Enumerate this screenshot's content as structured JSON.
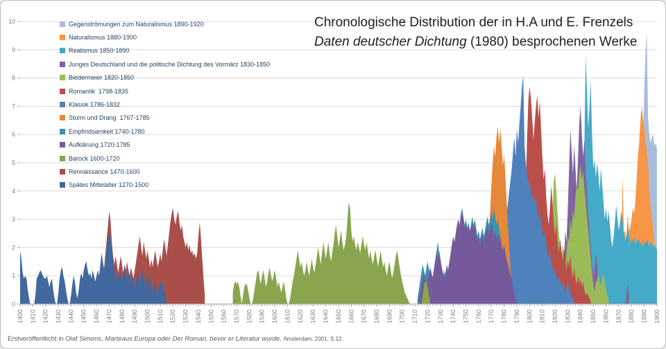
{
  "title": {
    "prefix": "Chronologische Distribution der in H.A und E. Frenzels ",
    "italic": "Daten deutscher Dichtung",
    "suffix": " (1980) besprochenen Werke"
  },
  "footer": {
    "prefix": "Erstveröffentlicht in Olaf Simons, ",
    "italic": "Marteaus Europa oder Der Roman, bevor er Literatur wurde",
    "suffix": ". ",
    "small": "Amsterdam, 2001, S.12."
  },
  "palette": {
    "grid": "#D9D9D9",
    "axis": "#A6A6A6",
    "tick": "#BFBFBF",
    "tick_label": "#808080",
    "legend_text": "#1F3D5C",
    "background": "#FFFFFF",
    "border": "#BDBDBD"
  },
  "chart_data": {
    "type": "area",
    "title": "Chronologische Distribution der in H.A und E. Frenzels Daten deutscher Dichtung (1980) besprochenen Werke",
    "xlabel": "",
    "ylabel": "",
    "x_axis": {
      "start": 1400,
      "end": 1900,
      "tick_interval": 10,
      "minor_tick_interval": 2,
      "tick_labels": [
        "1400",
        "1410",
        "1420",
        "1430",
        "1440",
        "1450",
        "1460",
        "1470",
        "1480",
        "1490",
        "1500",
        "1510",
        "1520",
        "1530",
        "1540",
        "1550",
        "1560",
        "1570",
        "1580",
        "1590",
        "1600",
        "1610",
        "1620",
        "1630",
        "1640",
        "1650",
        "1660",
        "1670",
        "1680",
        "1690",
        "1700",
        "1710",
        "1720",
        "1730",
        "1740",
        "1750",
        "1760",
        "1770",
        "1780",
        "1790",
        "1800",
        "1810",
        "1820",
        "1830",
        "1840",
        "1850",
        "1860",
        "1870",
        "1880",
        "1890",
        "1900"
      ]
    },
    "y_axis": {
      "min": 0,
      "max": 10,
      "tick_interval": 1,
      "tick_labels": [
        "0",
        "1",
        "2",
        "3",
        "4",
        "5",
        "6",
        "7",
        "8",
        "9",
        "10"
      ]
    },
    "grid": true,
    "legend_position": "top-left",
    "series_note": "array order = painter order, first = back-most; legend shown in same order top to bottom; x resolution = 1 year",
    "series": [
      {
        "name": "Gegenströmungen zum Naturalismus",
        "period": "1890-1920",
        "label": "Gegenströmungen zum Naturalismus 1890-1920",
        "color": "#A9BDDB",
        "start": 1886,
        "values": [
          0.5,
          1.5,
          3.0,
          5.5,
          7.5,
          9.0,
          9.6,
          6.6,
          6.0,
          5.7,
          5.9,
          6.0,
          5.6,
          5.7,
          5.5
        ]
      },
      {
        "name": "Naturalismus",
        "period": "1880-1900",
        "label": "Naturalismus 1880-1900",
        "color": "#F79646",
        "start": 1871,
        "values": [
          0.3,
          2.0,
          4.5,
          2.5,
          2.6,
          2.2,
          3.2,
          2.6,
          2.7,
          3.0,
          3.4,
          3.2,
          3.6,
          4.4,
          5.2,
          5.7,
          6.5,
          7.0,
          6.6,
          6.2,
          5.8,
          5.4,
          5.0,
          3.9,
          3.4,
          3.0,
          2.6,
          2.2,
          1.6,
          1.0
        ]
      },
      {
        "name": "Realismus",
        "period": "1850-1890",
        "label": "Realismus 1850-1890",
        "color": "#45AAC8",
        "start": 1840,
        "values": [
          0.3,
          0.8,
          2.2,
          5.5,
          8.8,
          7.6,
          6.2,
          7.0,
          7.9,
          6.0,
          4.8,
          5.1,
          4.5,
          5.0,
          4.6,
          4.0,
          4.8,
          4.2,
          3.6,
          3.0,
          3.4,
          2.9,
          3.3,
          2.8,
          2.3,
          2.0,
          2.4,
          2.9,
          3.5,
          3.0,
          2.6,
          2.9,
          3.3,
          2.9,
          2.5,
          2.2,
          2.4,
          2.8,
          2.4,
          2.1,
          2.3,
          2.2,
          2.4,
          2.1,
          2.3,
          2.2,
          2.3,
          2.1,
          2.2,
          2.0,
          2.2,
          2.1,
          2.3,
          2.2,
          2.0,
          2.2,
          2.1,
          2.0,
          2.1,
          2.0,
          1.9
        ]
      },
      {
        "name": "Junges Deutschland und die politische Dichtung des Vormärz",
        "period": "1830-1850",
        "label": "Junges Deutschland und die politische Dichtung des Vormärz 1830-1850",
        "color": "#8064A2",
        "start": 1825,
        "values": [
          0.5,
          1.0,
          1.5,
          2.6,
          2.2,
          3.4,
          4.8,
          6.2,
          5.4,
          4.6,
          5.6,
          4.8,
          4.0,
          5.2,
          6.4,
          7.0,
          6.0,
          5.2,
          5.8,
          4.8,
          4.0,
          3.2,
          2.6,
          2.0,
          1.5,
          1.0,
          1.2,
          1.8,
          1.4,
          0.9,
          0.6,
          0.4,
          0.7,
          0.5,
          0.3,
          0,
          0,
          0,
          0,
          0,
          0,
          0,
          0,
          0,
          0,
          0,
          0,
          0,
          0,
          0,
          0,
          0.3,
          0.7,
          0.3
        ]
      },
      {
        "name": "Biedermeier",
        "period": "1820-1850",
        "label": "Biedermeier 1820-1850",
        "color": "#9BBB59",
        "start": 1815,
        "values": [
          0.5,
          1.2,
          2.0,
          3.3,
          4.4,
          4.6,
          4.0,
          3.2,
          2.5,
          2.0,
          1.6,
          2.1,
          1.6,
          1.4,
          1.8,
          2.4,
          2.2,
          3.0,
          2.6,
          3.3,
          3.0,
          3.8,
          4.2,
          4.0,
          4.6,
          4.9,
          4.4,
          4.7,
          4.1,
          3.6,
          3.1,
          2.6,
          2.1,
          1.6,
          1.1,
          0.7,
          0.4,
          0.8,
          0.8,
          1.1,
          0.8,
          0.6,
          0.9,
          1.1,
          0.8,
          0.5,
          0.3,
          0.2
        ]
      },
      {
        "name": "Romantik",
        "period": "1798-1835",
        "label": "Romantik  1798-1835",
        "color": "#BC4E4A",
        "start": 1795,
        "values": [
          0.8,
          2.2,
          4.0,
          5.8,
          7.2,
          7.7,
          7.3,
          6.6,
          5.8,
          6.4,
          7.0,
          7.4,
          6.6,
          7.2,
          6.2,
          5.2,
          4.4,
          4.8,
          3.8,
          3.2,
          2.8,
          3.4,
          4.2,
          3.6,
          2.8,
          2.4,
          2.9,
          2.2,
          1.8,
          2.3,
          1.9,
          1.5,
          2.0,
          1.6,
          1.2,
          1.6,
          1.3,
          1.7,
          1.2,
          0.9,
          1.3,
          0.9,
          0.7,
          1.0,
          0.7,
          0.9,
          0.6,
          0.8,
          0.5,
          0.3,
          0.4,
          0.3,
          0.2,
          0.1
        ]
      },
      {
        "name": "Klassik",
        "period": "1786-1832",
        "label": "Klassik 1786-1832",
        "color": "#4F81BD",
        "start": 1772,
        "values": [
          0.2,
          0.5,
          0.8,
          1.1,
          1.4,
          1.7,
          2.0,
          2.3,
          2.6,
          2.9,
          3.2,
          3.6,
          4.0,
          4.4,
          4.8,
          5.4,
          5.9,
          5.2,
          6.2,
          5.7,
          6.4,
          7.0,
          7.7,
          8.1,
          5.6,
          5.0,
          4.6,
          4.3,
          4.4,
          4.0,
          3.7,
          4.0,
          3.6,
          3.8,
          3.3,
          3.0,
          3.4,
          2.9,
          2.6,
          2.3,
          2.6,
          2.2,
          1.9,
          1.6,
          1.9,
          1.6,
          1.3,
          1.1,
          1.3,
          1.0,
          0.8,
          1.0,
          0.8,
          0.6,
          0.8,
          0.6,
          0.4,
          0.6,
          0.8,
          0.6,
          0.4,
          0.3,
          0.2,
          0.1
        ]
      },
      {
        "name": "Sturm und Drang",
        "period": "1767-1785",
        "label": "Sturm und Drang  1767-1785",
        "color": "#E5883A",
        "start": 1765,
        "values": [
          0.3,
          0.8,
          1.5,
          2.4,
          3.3,
          4.2,
          5.0,
          5.6,
          5.2,
          5.9,
          6.3,
          5.7,
          6.2,
          5.6,
          4.9,
          5.3,
          4.5,
          3.6,
          2.8,
          2.0,
          1.2,
          0.5
        ]
      },
      {
        "name": "Empfindsamkeit",
        "period": "1740-1780",
        "label": "Empfindsamkeit 1740-1780",
        "color": "#3A93AF",
        "start": 1712,
        "values": [
          0.2,
          0.5,
          0.8,
          1.1,
          1.4,
          1.2,
          1.0,
          1.3,
          1.5,
          1.2,
          0.9,
          0.7,
          1.0,
          1.3,
          1.6,
          1.9,
          2.2,
          1.8,
          1.4,
          1.1,
          0.9,
          1.2,
          1.0,
          1.3,
          1.1,
          1.4,
          1.7,
          2.0,
          2.3,
          2.0,
          2.4,
          2.7,
          3.0,
          2.8,
          3.2,
          3.4,
          3.1,
          2.8,
          3.0,
          2.7,
          2.9,
          2.6,
          2.8,
          3.1,
          2.8,
          3.0,
          2.7,
          2.4,
          2.6,
          2.3,
          2.5,
          2.7,
          2.4,
          2.6,
          2.9,
          3.1,
          2.8,
          3.0,
          3.3,
          3.0,
          3.4,
          3.1,
          2.8,
          3.0,
          2.7,
          2.4,
          2.1,
          1.8,
          1.4,
          0.9,
          0.4
        ]
      },
      {
        "name": "Aufklärung",
        "period": "1720-1785",
        "label": "Aufklärung 1720-1785",
        "color": "#745A9B",
        "start": 1713,
        "values": [
          0.2,
          0.4,
          0.6,
          0.9,
          1.1,
          0.9,
          0.7,
          0.9,
          1.1,
          1.3,
          1.1,
          0.9,
          1.2,
          1.5,
          1.8,
          1.6,
          1.9,
          1.6,
          1.3,
          1.1,
          0.9,
          1.1,
          1.4,
          1.2,
          1.5,
          1.8,
          2.1,
          2.4,
          2.2,
          2.5,
          2.8,
          3.0,
          2.7,
          3.1,
          3.3,
          3.0,
          2.7,
          2.9,
          2.6,
          2.8,
          2.5,
          2.7,
          2.9,
          2.6,
          2.8,
          2.5,
          2.2,
          2.4,
          2.1,
          2.3,
          2.5,
          2.2,
          2.4,
          2.6,
          2.8,
          2.5,
          2.7,
          2.9,
          2.6,
          2.4,
          2.6,
          2.3,
          2.5,
          2.2,
          2.4,
          2.1,
          1.9,
          2.1,
          1.8,
          1.6,
          1.4,
          1.2,
          1.0,
          0.8,
          0.6,
          0.4,
          0.2,
          0.1
        ]
      },
      {
        "name": "Barock",
        "period": "1600-1720",
        "label": "Barock 1600-1720",
        "color": "#89A54E",
        "start": 1567,
        "values": [
          0.4,
          0.7,
          0.8,
          0.7,
          0.8,
          0.6,
          0.3,
          0,
          0.3,
          0.6,
          0.7,
          0.7,
          0.5,
          0.2,
          0,
          0,
          0.2,
          0.5,
          0.8,
          1.1,
          1.2,
          0.9,
          0.7,
          1.0,
          1.2,
          0.9,
          0.6,
          0.8,
          1.1,
          1.3,
          1.0,
          0.8,
          1.0,
          1.2,
          0.9,
          0.6,
          0.8,
          0.6,
          0.4,
          0.6,
          0.8,
          0.5,
          0.2,
          0,
          0,
          0.2,
          0.5,
          0.8,
          1.0,
          1.3,
          1.6,
          1.9,
          1.6,
          1.3,
          1.5,
          1.2,
          1.0,
          1.2,
          1.5,
          1.2,
          1.0,
          1.3,
          1.6,
          1.3,
          1.1,
          1.4,
          1.7,
          2.0,
          1.7,
          1.4,
          1.8,
          2.2,
          1.9,
          1.6,
          1.9,
          2.2,
          1.8,
          1.5,
          1.8,
          2.1,
          2.5,
          2.8,
          2.4,
          2.0,
          2.3,
          2.6,
          2.2,
          1.9,
          2.1,
          2.4,
          3.0,
          3.6,
          3.4,
          2.6,
          2.2,
          2.4,
          2.1,
          1.9,
          2.2,
          2.0,
          1.8,
          2.1,
          2.4,
          2.1,
          1.9,
          2.2,
          1.9,
          1.6,
          1.9,
          1.6,
          1.4,
          1.7,
          1.9,
          1.6,
          1.3,
          1.6,
          1.9,
          1.6,
          1.3,
          1.5,
          1.2,
          1.0,
          1.3,
          1.5,
          1.2,
          0.9,
          1.1,
          1.4,
          1.7,
          1.9,
          1.6,
          1.3,
          1.0,
          0.8,
          0.6,
          0.4,
          0.3,
          0.2,
          0.1,
          0,
          0,
          0,
          0,
          0,
          0,
          0,
          0,
          0,
          0,
          0.3,
          0.6,
          0.8,
          0.8,
          0.6,
          0.3,
          0.1
        ]
      },
      {
        "name": "Rennaissance",
        "period": "1470-1600",
        "label": "Rennaissance 1470-1600",
        "color": "#A94E49",
        "start": 1462,
        "values": [
          0.2,
          0.5,
          0.8,
          1.0,
          1.3,
          1.8,
          2.3,
          2.8,
          3.3,
          2.9,
          2.2,
          1.7,
          1.4,
          1.7,
          1.4,
          1.1,
          1.4,
          1.7,
          1.4,
          1.1,
          1.4,
          1.2,
          1.5,
          1.2,
          1.0,
          1.3,
          1.1,
          0.9,
          1.2,
          1.5,
          1.8,
          2.1,
          2.4,
          2.0,
          1.7,
          2.2,
          1.9,
          1.6,
          1.9,
          1.6,
          1.3,
          1.6,
          1.3,
          1.6,
          1.9,
          1.6,
          1.3,
          1.5,
          1.8,
          1.5,
          1.9,
          2.3,
          2.0,
          1.7,
          2.1,
          2.5,
          2.9,
          3.2,
          3.4,
          3.0,
          2.8,
          3.1,
          3.3,
          2.9,
          2.6,
          2.8,
          2.4,
          2.2,
          2.0,
          2.2,
          1.9,
          2.1,
          1.8,
          1.9,
          1.7,
          1.8,
          1.6,
          1.8,
          2.4,
          2.9,
          2.3,
          1.6,
          0.9,
          0.3
        ]
      },
      {
        "name": "Spätes Mittelalter",
        "period": "1270-1500",
        "label": "Spätes Mittelalter 1270-1500",
        "color": "#41699F",
        "start": 1400,
        "values": [
          1.9,
          1.6,
          1.1,
          0.9,
          1.0,
          0.9,
          0.5,
          0.2,
          0,
          0,
          0,
          0,
          0.3,
          0.9,
          1.0,
          1.1,
          1.2,
          1.1,
          1.0,
          0.9,
          0.9,
          1.0,
          0.8,
          0.6,
          0.8,
          0.9,
          0.5,
          0.2,
          0,
          0,
          0.4,
          0.9,
          1.2,
          1.3,
          1.0,
          0.8,
          0.5,
          0.2,
          0,
          0,
          0.3,
          0.7,
          1.0,
          0.8,
          0.4,
          0.2,
          0.5,
          0.9,
          1.1,
          0.9,
          1.2,
          1.4,
          1.5,
          1.2,
          1.0,
          1.1,
          0.9,
          1.2,
          1.0,
          0.8,
          1.0,
          1.2,
          1.0,
          1.4,
          1.8,
          1.5,
          1.2,
          1.6,
          2.0,
          2.4,
          2.6,
          2.3,
          1.9,
          1.5,
          1.2,
          1.0,
          0.8,
          1.0,
          1.2,
          1.0,
          0.8,
          1.1,
          1.3,
          1.1,
          0.9,
          1.2,
          1.0,
          0.8,
          1.0,
          0.8,
          0.6,
          0.9,
          1.1,
          0.9,
          0.7,
          1.0,
          1.2,
          1.0,
          0.8,
          0.6,
          0.9,
          1.1,
          0.8,
          0.6,
          0.4,
          0.6,
          0.8,
          0.6,
          0.4,
          0.5,
          0.7,
          0.9,
          0.7,
          0.5,
          0.3,
          0.1
        ]
      }
    ]
  }
}
